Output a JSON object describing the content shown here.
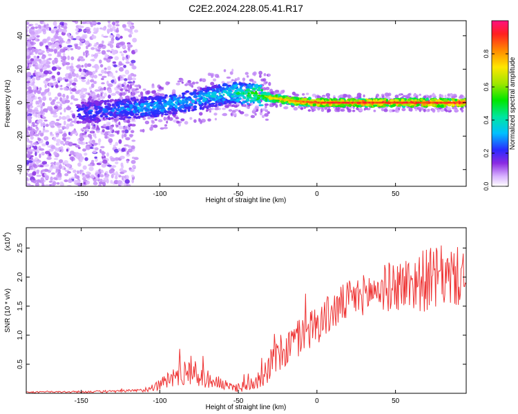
{
  "title": "C2E2.2024.228.05.41.R17",
  "chart_data": [
    {
      "type": "heatmap",
      "name": "spectrogram",
      "xlabel": "Height of straight line (km)",
      "ylabel": "Frequency (Hz)",
      "xlim": [
        -185,
        95
      ],
      "ylim": [
        -50,
        49
      ],
      "xticks": [
        -150,
        -100,
        -50,
        0,
        50
      ],
      "yticks": [
        -40,
        -20,
        0,
        20,
        40
      ],
      "colorbar": {
        "label": "Normalized spectral amplitude",
        "range": [
          0,
          1
        ],
        "ticks": [
          0.0,
          0.2,
          0.4,
          0.6,
          0.8
        ],
        "tick_labels": [
          "0.0",
          "0.2",
          "0.4",
          "0.6",
          "0.8"
        ]
      },
      "ridge": {
        "description_points": [
          {
            "x": -150,
            "f": -6,
            "amp": 0.25
          },
          {
            "x": -125,
            "f": -4,
            "amp": 0.3
          },
          {
            "x": -100,
            "f": -2,
            "amp": 0.35
          },
          {
            "x": -75,
            "f": 2,
            "amp": 0.35
          },
          {
            "x": -55,
            "f": 6,
            "amp": 0.4
          },
          {
            "x": -40,
            "f": 5,
            "amp": 0.55
          },
          {
            "x": -30,
            "f": 3,
            "amp": 0.75
          },
          {
            "x": -15,
            "f": 1,
            "amp": 0.85
          },
          {
            "x": 0,
            "f": 0,
            "amp": 0.95
          },
          {
            "x": 50,
            "f": 0,
            "amp": 0.95
          },
          {
            "x": 95,
            "f": 0,
            "amp": 0.95
          }
        ]
      }
    },
    {
      "type": "line",
      "name": "snr",
      "xlabel": "Height of straight line (km)",
      "ylabel": "SNR (10 * v/v)",
      "y_multiplier_label": "(x10",
      "y_multiplier_exp": "4",
      "y_multiplier_close": ")",
      "xlim": [
        -185,
        95
      ],
      "ylim": [
        0,
        2.85
      ],
      "xticks": [
        -150,
        -100,
        -50,
        0,
        50
      ],
      "yticks": [
        0.5,
        1.0,
        1.5,
        2.0,
        2.5
      ],
      "ytick_labels": [
        "0.5",
        "1.0",
        "1.5",
        "2.0",
        "2.5"
      ],
      "color": "#ee3333",
      "envelope": {
        "x": [
          -185,
          -130,
          -110,
          -100,
          -90,
          -82,
          -75,
          -65,
          -55,
          -45,
          -35,
          -28,
          -20,
          -10,
          0,
          10,
          20,
          30,
          40,
          50,
          60,
          70,
          80,
          95
        ],
        "mean": [
          0.02,
          0.03,
          0.05,
          0.15,
          0.3,
          0.4,
          0.3,
          0.2,
          0.1,
          0.12,
          0.3,
          0.55,
          0.75,
          1.0,
          1.2,
          1.4,
          1.6,
          1.7,
          1.8,
          1.85,
          1.9,
          1.95,
          2.0,
          2.0
        ],
        "spread": [
          0.01,
          0.02,
          0.03,
          0.1,
          0.2,
          0.25,
          0.2,
          0.12,
          0.08,
          0.1,
          0.2,
          0.3,
          0.35,
          0.35,
          0.35,
          0.35,
          0.35,
          0.35,
          0.4,
          0.45,
          0.5,
          0.55,
          0.55,
          0.5
        ]
      }
    }
  ]
}
